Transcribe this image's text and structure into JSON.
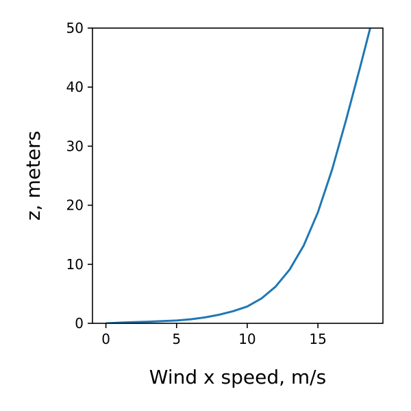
{
  "chart_data": {
    "type": "line",
    "title": "",
    "xlabel": "Wind x speed, m/s",
    "ylabel": "z, meters",
    "xlim": [
      -0.95,
      19.6
    ],
    "ylim": [
      0,
      50
    ],
    "xticks": [
      0,
      5,
      10,
      15
    ],
    "yticks": [
      0,
      10,
      20,
      30,
      40,
      50
    ],
    "grid": false,
    "series": [
      {
        "color": "#1f77b4",
        "x": [
          0,
          1.0,
          2.0,
          3.0,
          4.0,
          5.0,
          6.0,
          7.0,
          8.0,
          9.0,
          10.0,
          11.0,
          12.0,
          13.0,
          14.0,
          15.0,
          16.0,
          17.0,
          18.0,
          18.7
        ],
        "y": [
          0.0,
          0.12,
          0.2,
          0.28,
          0.37,
          0.48,
          0.68,
          1.0,
          1.45,
          2.05,
          2.85,
          4.2,
          6.2,
          9.1,
          13.2,
          18.8,
          26.0,
          34.5,
          43.5,
          50
        ]
      }
    ]
  }
}
